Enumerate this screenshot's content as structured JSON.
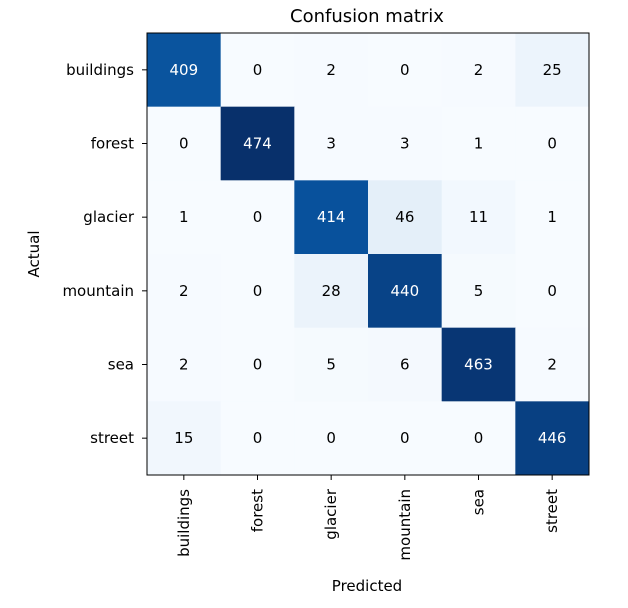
{
  "chart_data": {
    "type": "heatmap",
    "title": "Confusion matrix",
    "xlabel": "Predicted",
    "ylabel": "Actual",
    "x_categories": [
      "buildings",
      "forest",
      "glacier",
      "mountain",
      "sea",
      "street"
    ],
    "y_categories": [
      "buildings",
      "forest",
      "glacier",
      "mountain",
      "sea",
      "street"
    ],
    "values": [
      [
        409,
        0,
        2,
        0,
        2,
        25
      ],
      [
        0,
        474,
        3,
        3,
        1,
        0
      ],
      [
        1,
        0,
        414,
        46,
        11,
        1
      ],
      [
        2,
        0,
        28,
        440,
        5,
        0
      ],
      [
        2,
        0,
        5,
        6,
        463,
        2
      ],
      [
        15,
        0,
        0,
        0,
        0,
        446
      ]
    ],
    "colormap": "Blues",
    "value_range": [
      0,
      474
    ],
    "grid": false,
    "legend": "none",
    "colors": {
      "low": "#f7fbff",
      "high": "#1c2c6b",
      "text_light": "#ffffff",
      "text_dark": "#000000"
    }
  }
}
